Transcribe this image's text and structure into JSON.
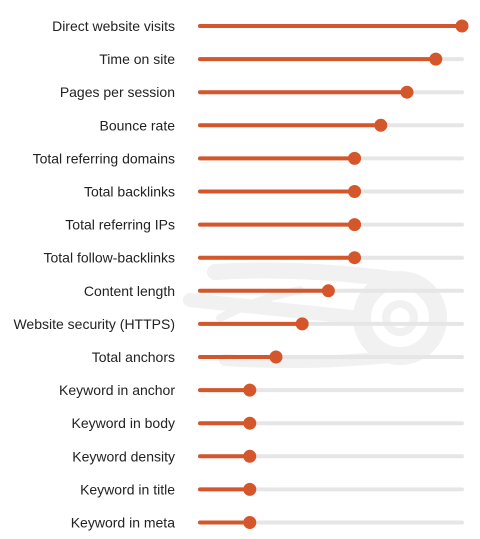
{
  "chart_data": {
    "type": "bar",
    "orientation": "horizontal",
    "style": "lollipop-slider",
    "title": "",
    "xlabel": "",
    "ylabel": "",
    "xlim": [
      0,
      1
    ],
    "grid": false,
    "legend": "none",
    "categories": [
      "Direct website visits",
      "Time on site",
      "Pages per session",
      "Bounce rate",
      "Total referring domains",
      "Total backlinks",
      "Total referring IPs",
      "Total follow-backlinks",
      "Content length",
      "Website security (HTTPS)",
      "Total anchors",
      "Keyword in anchor",
      "Keyword in body",
      "Keyword density",
      "Keyword in title",
      "Keyword in meta"
    ],
    "values": [
      1.0,
      0.9,
      0.79,
      0.69,
      0.59,
      0.59,
      0.59,
      0.59,
      0.49,
      0.39,
      0.29,
      0.19,
      0.19,
      0.19,
      0.19,
      0.19
    ],
    "colors": {
      "fill": "#d5562a",
      "track": "#e6e6e6",
      "label": "#222222",
      "watermark": "#f2f2f2"
    }
  },
  "watermark": {
    "icon": "semrush-fireball-logo"
  }
}
